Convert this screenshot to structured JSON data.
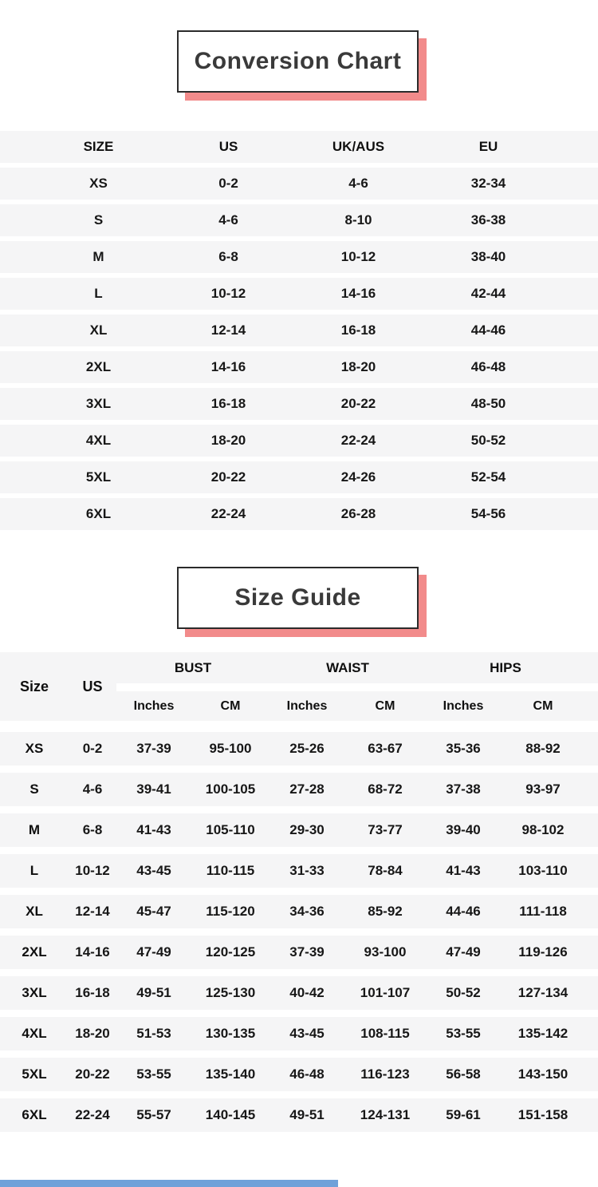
{
  "colors": {
    "accent_pink": "#f28b8b",
    "box_border": "#2b2b2b",
    "row_band_gray": "#f5f5f6",
    "bottom_bar_blue": "#6fa1d9"
  },
  "conversion_chart": {
    "title": "Conversion Chart",
    "columns": [
      "SIZE",
      "US",
      "UK/AUS",
      "EU"
    ],
    "rows": [
      [
        "XS",
        "0-2",
        "4-6",
        "32-34"
      ],
      [
        "S",
        "4-6",
        "8-10",
        "36-38"
      ],
      [
        "M",
        "6-8",
        "10-12",
        "38-40"
      ],
      [
        "L",
        "10-12",
        "14-16",
        "42-44"
      ],
      [
        "XL",
        "12-14",
        "16-18",
        "44-46"
      ],
      [
        "2XL",
        "14-16",
        "18-20",
        "46-48"
      ],
      [
        "3XL",
        "16-18",
        "20-22",
        "48-50"
      ],
      [
        "4XL",
        "18-20",
        "22-24",
        "50-52"
      ],
      [
        "5XL",
        "20-22",
        "24-26",
        "52-54"
      ],
      [
        "6XL",
        "22-24",
        "26-28",
        "54-56"
      ]
    ]
  },
  "size_guide": {
    "title": "Size Guide",
    "col_size": "Size",
    "col_us": "US",
    "groups": [
      "BUST",
      "WAIST",
      "HIPS"
    ],
    "sub_columns": [
      "Inches",
      "CM"
    ],
    "rows": [
      [
        "XS",
        "0-2",
        "37-39",
        "95-100",
        "25-26",
        "63-67",
        "35-36",
        "88-92"
      ],
      [
        "S",
        "4-6",
        "39-41",
        "100-105",
        "27-28",
        "68-72",
        "37-38",
        "93-97"
      ],
      [
        "M",
        "6-8",
        "41-43",
        "105-110",
        "29-30",
        "73-77",
        "39-40",
        "98-102"
      ],
      [
        "L",
        "10-12",
        "43-45",
        "110-115",
        "31-33",
        "78-84",
        "41-43",
        "103-110"
      ],
      [
        "XL",
        "12-14",
        "45-47",
        "115-120",
        "34-36",
        "85-92",
        "44-46",
        "111-118"
      ],
      [
        "2XL",
        "14-16",
        "47-49",
        "120-125",
        "37-39",
        "93-100",
        "47-49",
        "119-126"
      ],
      [
        "3XL",
        "16-18",
        "49-51",
        "125-130",
        "40-42",
        "101-107",
        "50-52",
        "127-134"
      ],
      [
        "4XL",
        "18-20",
        "51-53",
        "130-135",
        "43-45",
        "108-115",
        "53-55",
        "135-142"
      ],
      [
        "5XL",
        "20-22",
        "53-55",
        "135-140",
        "46-48",
        "116-123",
        "56-58",
        "143-150"
      ],
      [
        "6XL",
        "22-24",
        "55-57",
        "140-145",
        "49-51",
        "124-131",
        "59-61",
        "151-158"
      ]
    ]
  }
}
